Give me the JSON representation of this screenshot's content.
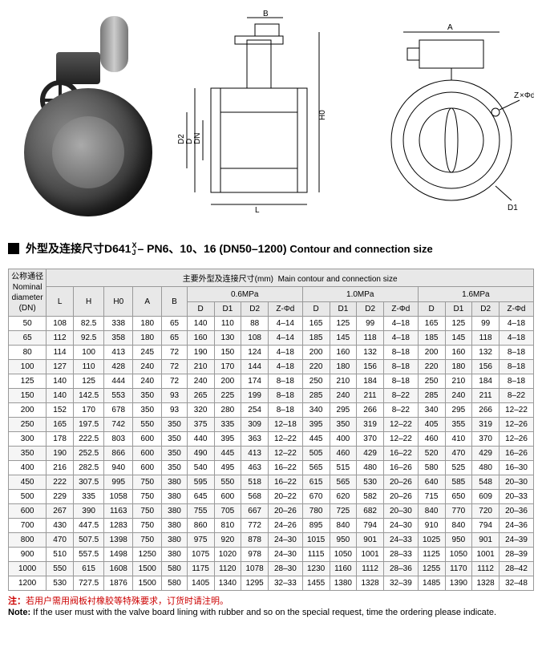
{
  "title": {
    "cn_prefix": "外型及连接尺寸D641",
    "frac_top": "X",
    "frac_bot": "J",
    "cn_suffix": "– PN6、10、16 (DN50–1200)",
    "en": "Contour and connection size"
  },
  "table": {
    "header": {
      "dn_cn": "公称通径",
      "dn_en": "Nominal diameter",
      "dn_unit": "(DN)",
      "main_cn": "主要外型及连接尺寸(mm)",
      "main_en": "Main contour and connection size",
      "basic_cols": [
        "L",
        "H",
        "H0",
        "A",
        "B"
      ],
      "pressure_groups": [
        "0.6MPa",
        "1.0MPa",
        "1.6MPa"
      ],
      "pressure_cols": [
        "D",
        "D1",
        "D2",
        "Z-Φd"
      ]
    },
    "rows": [
      {
        "dn": "50",
        "basic": [
          "108",
          "82.5",
          "338",
          "180",
          "65"
        ],
        "p1": [
          "140",
          "110",
          "88",
          "4–14"
        ],
        "p2": [
          "165",
          "125",
          "99",
          "4–18"
        ],
        "p3": [
          "165",
          "125",
          "99",
          "4–18"
        ]
      },
      {
        "dn": "65",
        "basic": [
          "112",
          "92.5",
          "358",
          "180",
          "65"
        ],
        "p1": [
          "160",
          "130",
          "108",
          "4–14"
        ],
        "p2": [
          "185",
          "145",
          "118",
          "4–18"
        ],
        "p3": [
          "185",
          "145",
          "118",
          "4–18"
        ]
      },
      {
        "dn": "80",
        "basic": [
          "114",
          "100",
          "413",
          "245",
          "72"
        ],
        "p1": [
          "190",
          "150",
          "124",
          "4–18"
        ],
        "p2": [
          "200",
          "160",
          "132",
          "8–18"
        ],
        "p3": [
          "200",
          "160",
          "132",
          "8–18"
        ]
      },
      {
        "dn": "100",
        "basic": [
          "127",
          "110",
          "428",
          "240",
          "72"
        ],
        "p1": [
          "210",
          "170",
          "144",
          "4–18"
        ],
        "p2": [
          "220",
          "180",
          "156",
          "8–18"
        ],
        "p3": [
          "220",
          "180",
          "156",
          "8–18"
        ]
      },
      {
        "dn": "125",
        "basic": [
          "140",
          "125",
          "444",
          "240",
          "72"
        ],
        "p1": [
          "240",
          "200",
          "174",
          "8–18"
        ],
        "p2": [
          "250",
          "210",
          "184",
          "8–18"
        ],
        "p3": [
          "250",
          "210",
          "184",
          "8–18"
        ]
      },
      {
        "dn": "150",
        "basic": [
          "140",
          "142.5",
          "553",
          "350",
          "93"
        ],
        "p1": [
          "265",
          "225",
          "199",
          "8–18"
        ],
        "p2": [
          "285",
          "240",
          "211",
          "8–22"
        ],
        "p3": [
          "285",
          "240",
          "211",
          "8–22"
        ]
      },
      {
        "dn": "200",
        "basic": [
          "152",
          "170",
          "678",
          "350",
          "93"
        ],
        "p1": [
          "320",
          "280",
          "254",
          "8–18"
        ],
        "p2": [
          "340",
          "295",
          "266",
          "8–22"
        ],
        "p3": [
          "340",
          "295",
          "266",
          "12–22"
        ]
      },
      {
        "dn": "250",
        "basic": [
          "165",
          "197.5",
          "742",
          "550",
          "350"
        ],
        "p1": [
          "375",
          "335",
          "309",
          "12–18"
        ],
        "p2": [
          "395",
          "350",
          "319",
          "12–22"
        ],
        "p3": [
          "405",
          "355",
          "319",
          "12–26"
        ]
      },
      {
        "dn": "300",
        "basic": [
          "178",
          "222.5",
          "803",
          "600",
          "350"
        ],
        "p1": [
          "440",
          "395",
          "363",
          "12–22"
        ],
        "p2": [
          "445",
          "400",
          "370",
          "12–22"
        ],
        "p3": [
          "460",
          "410",
          "370",
          "12–26"
        ]
      },
      {
        "dn": "350",
        "basic": [
          "190",
          "252.5",
          "866",
          "600",
          "350"
        ],
        "p1": [
          "490",
          "445",
          "413",
          "12–22"
        ],
        "p2": [
          "505",
          "460",
          "429",
          "16–22"
        ],
        "p3": [
          "520",
          "470",
          "429",
          "16–26"
        ]
      },
      {
        "dn": "400",
        "basic": [
          "216",
          "282.5",
          "940",
          "600",
          "350"
        ],
        "p1": [
          "540",
          "495",
          "463",
          "16–22"
        ],
        "p2": [
          "565",
          "515",
          "480",
          "16–26"
        ],
        "p3": [
          "580",
          "525",
          "480",
          "16–30"
        ]
      },
      {
        "dn": "450",
        "basic": [
          "222",
          "307.5",
          "995",
          "750",
          "380"
        ],
        "p1": [
          "595",
          "550",
          "518",
          "16–22"
        ],
        "p2": [
          "615",
          "565",
          "530",
          "20–26"
        ],
        "p3": [
          "640",
          "585",
          "548",
          "20–30"
        ]
      },
      {
        "dn": "500",
        "basic": [
          "229",
          "335",
          "1058",
          "750",
          "380"
        ],
        "p1": [
          "645",
          "600",
          "568",
          "20–22"
        ],
        "p2": [
          "670",
          "620",
          "582",
          "20–26"
        ],
        "p3": [
          "715",
          "650",
          "609",
          "20–33"
        ]
      },
      {
        "dn": "600",
        "basic": [
          "267",
          "390",
          "1163",
          "750",
          "380"
        ],
        "p1": [
          "755",
          "705",
          "667",
          "20–26"
        ],
        "p2": [
          "780",
          "725",
          "682",
          "20–30"
        ],
        "p3": [
          "840",
          "770",
          "720",
          "20–36"
        ]
      },
      {
        "dn": "700",
        "basic": [
          "430",
          "447.5",
          "1283",
          "750",
          "380"
        ],
        "p1": [
          "860",
          "810",
          "772",
          "24–26"
        ],
        "p2": [
          "895",
          "840",
          "794",
          "24–30"
        ],
        "p3": [
          "910",
          "840",
          "794",
          "24–36"
        ]
      },
      {
        "dn": "800",
        "basic": [
          "470",
          "507.5",
          "1398",
          "750",
          "380"
        ],
        "p1": [
          "975",
          "920",
          "878",
          "24–30"
        ],
        "p2": [
          "1015",
          "950",
          "901",
          "24–33"
        ],
        "p3": [
          "1025",
          "950",
          "901",
          "24–39"
        ]
      },
      {
        "dn": "900",
        "basic": [
          "510",
          "557.5",
          "1498",
          "1250",
          "380"
        ],
        "p1": [
          "1075",
          "1020",
          "978",
          "24–30"
        ],
        "p2": [
          "1115",
          "1050",
          "1001",
          "28–33"
        ],
        "p3": [
          "1125",
          "1050",
          "1001",
          "28–39"
        ]
      },
      {
        "dn": "1000",
        "basic": [
          "550",
          "615",
          "1608",
          "1500",
          "580"
        ],
        "p1": [
          "1175",
          "1120",
          "1078",
          "28–30"
        ],
        "p2": [
          "1230",
          "1160",
          "1112",
          "28–36"
        ],
        "p3": [
          "1255",
          "1170",
          "1112",
          "28–42"
        ]
      },
      {
        "dn": "1200",
        "basic": [
          "530",
          "727.5",
          "1876",
          "1500",
          "580"
        ],
        "p1": [
          "1405",
          "1340",
          "1295",
          "32–33"
        ],
        "p2": [
          "1455",
          "1380",
          "1328",
          "32–39"
        ],
        "p3": [
          "1485",
          "1390",
          "1328",
          "32–48"
        ]
      }
    ]
  },
  "note": {
    "cn_label": "注：",
    "cn_text": "若用户需用阀板衬橡胶等特殊要求，订货时请注明。",
    "en_label": "Note:",
    "en_text": "If the user must with the valve board lining with rubber and so on the special request, time the ordering please indicate."
  },
  "diagram_labels": {
    "B": "B",
    "L": "L",
    "D": "D",
    "D2": "D2",
    "DN": "DN",
    "H0": "H0",
    "A": "A",
    "Z": "Z",
    "phi": "×Φd",
    "D1": "D1"
  },
  "colors": {
    "border": "#999999",
    "header_bg": "#e8e8e8",
    "alt_row": "#f5f5f5",
    "note_red": "#cc0000"
  }
}
